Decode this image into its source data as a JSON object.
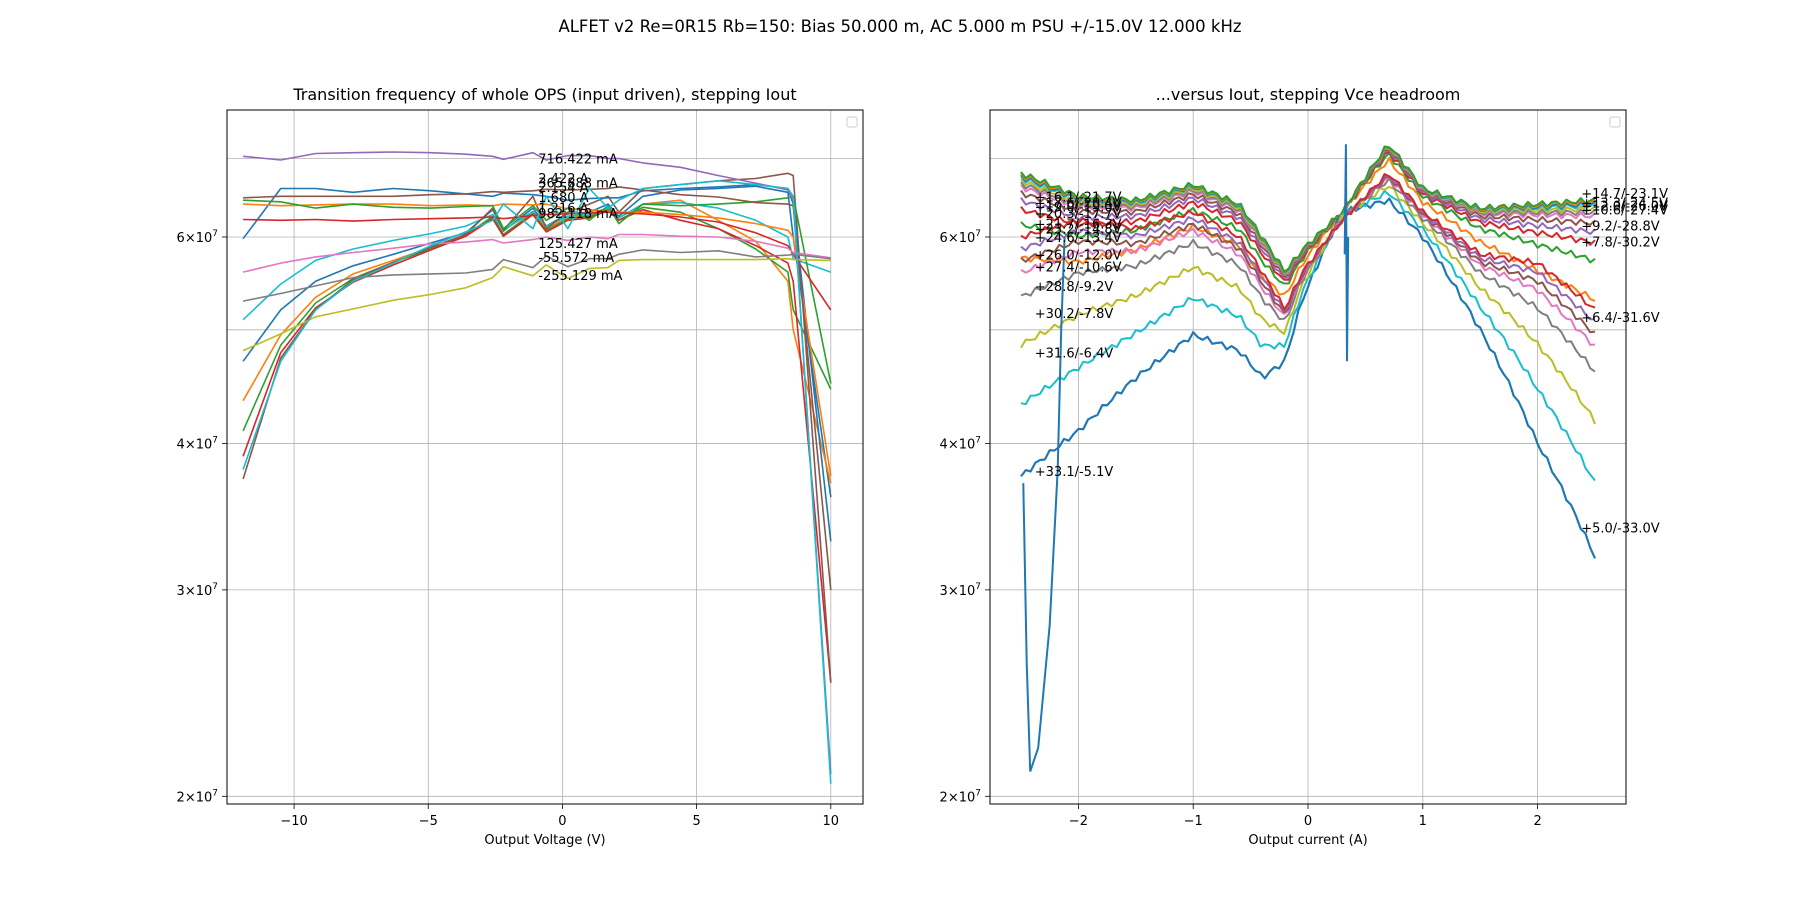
{
  "figure": {
    "suptitle": "ALFET v2 Re=0R15 Rb=150: Bias 50.000 m, AC 5.000 m PSU +/-15.0V 12.000 kHz"
  },
  "chart_data": [
    {
      "type": "line",
      "title": "Transition frequency of whole OPS (input driven), stepping Iout",
      "xlabel": "Output Voltage (V)",
      "ylabel": "",
      "xscale": "linear",
      "yscale": "log",
      "xlim": [
        -12.5,
        11.2
      ],
      "ylim": [
        19700000,
        77000000
      ],
      "xticks": [
        -10,
        -5,
        0,
        5,
        10
      ],
      "xtick_labels": [
        "−10",
        "−5",
        "0",
        "5",
        "10"
      ],
      "yticks": [
        20000000,
        30000000,
        40000000,
        60000000
      ],
      "ytick_labels": [
        {
          "mant": "2",
          "exp": "7"
        },
        {
          "mant": "3",
          "exp": "7"
        },
        {
          "mant": "4",
          "exp": "7"
        },
        {
          "mant": "6",
          "exp": "7"
        }
      ],
      "grid": true,
      "legend": "top-right, empty",
      "colors": [
        "#1f77b4",
        "#ff7f0e",
        "#2ca02c",
        "#d62728",
        "#9467bd",
        "#8c564b",
        "#e377c2",
        "#7f7f7f",
        "#bcbd22",
        "#17becf"
      ],
      "x": [
        -11.9,
        -10.5,
        -9.2,
        -7.8,
        -6.3,
        -4.9,
        -3.6,
        -2.6,
        -2.2,
        -1.1,
        -0.6,
        0.2,
        1.0,
        1.7,
        2.1,
        3.0,
        4.4,
        5.8,
        7.2,
        8.4,
        8.6,
        10.0
      ],
      "series": [
        {
          "name": "2.154 A",
          "label_y": 66200000,
          "values": [
            59800000,
            66000000,
            66000000,
            65500000,
            66000000,
            65700000,
            65300000,
            65000000,
            65400000,
            65200000,
            65000000,
            64500000,
            64700000,
            64800000,
            64800000,
            65700000,
            66000000,
            66200000,
            66500000,
            66000000,
            64000000,
            33000000
          ]
        },
        {
          "name": "1.680 A",
          "label_y": 64900000,
          "values": [
            64000000,
            63800000,
            63900000,
            64000000,
            64000000,
            63800000,
            63900000,
            63800000,
            64000000,
            63900000,
            64000000,
            63400000,
            63300000,
            63100000,
            63000000,
            63000000,
            62700000,
            62300000,
            61600000,
            60800000,
            60000000,
            37500000
          ]
        },
        {
          "name": "1.216 A",
          "label_y": 63600000,
          "values": [
            64500000,
            64300000,
            63500000,
            64000000,
            63600000,
            63500000,
            63700000,
            63800000,
            61000000,
            63800000,
            62000000,
            63500000,
            62000000,
            63800000,
            61600000,
            64000000,
            63800000,
            64000000,
            64300000,
            64800000,
            65000000,
            45000000
          ]
        },
        {
          "name": "982.118 mA",
          "label_y": 62900000,
          "values": [
            62100000,
            62000000,
            62100000,
            61900000,
            62100000,
            62200000,
            62300000,
            62400000,
            62200000,
            62600000,
            62700000,
            62800000,
            62900000,
            63000000,
            62900000,
            62800000,
            62400000,
            61800000,
            60500000,
            59000000,
            58000000,
            52000000
          ]
        },
        {
          "name": "716.422 mA",
          "label_y": 70000000,
          "values": [
            70300000,
            69800000,
            70700000,
            70800000,
            70900000,
            70800000,
            70600000,
            70300000,
            69900000,
            70800000,
            69800000,
            70400000,
            70400000,
            70000000,
            70000000,
            69400000,
            68800000,
            67700000,
            66700000,
            65800000,
            64500000,
            20900000
          ]
        },
        {
          "name": "365.888 mA",
          "label_y": 66800000,
          "values": [
            64800000,
            65000000,
            65000000,
            65000000,
            65000000,
            65200000,
            65300000,
            65600000,
            65500000,
            65700000,
            65900000,
            65800000,
            65900000,
            66000000,
            66200000,
            65800000,
            65200000,
            64900000,
            64200000,
            64000000,
            63800000,
            30000000
          ]
        },
        {
          "name": "125.427 mA",
          "label_y": 59300000,
          "values": [
            56000000,
            57000000,
            57700000,
            58200000,
            58700000,
            59200000,
            59400000,
            59700000,
            59300000,
            59700000,
            60000000,
            59600000,
            60000000,
            59800000,
            60300000,
            60300000,
            60100000,
            60000000,
            59500000,
            58700000,
            58200000,
            57600000
          ]
        },
        {
          "name": "-55.572 mA",
          "label_y": 57700000,
          "values": [
            52900000,
            53700000,
            54500000,
            55400000,
            55700000,
            55800000,
            55900000,
            56300000,
            57400000,
            56500000,
            57800000,
            56600000,
            57500000,
            57500000,
            58000000,
            58500000,
            58200000,
            58400000,
            57700000,
            57900000,
            58000000,
            57500000
          ]
        },
        {
          "name": "-255.129 mA",
          "label_y": 55700000,
          "values": [
            48000000,
            49600000,
            51300000,
            52100000,
            53000000,
            53600000,
            54300000,
            55400000,
            56600000,
            55600000,
            56800000,
            55300000,
            56400000,
            56500000,
            57300000,
            57400000,
            57400000,
            57400000,
            57400000,
            57500000,
            57400000,
            57300000
          ]
        },
        {
          "name": "2.422 A",
          "label_y": 67400000,
          "values": [
            38000000,
            47000000,
            52000000,
            55000000,
            57000000,
            59000000,
            60600000,
            62000000,
            64000000,
            61000000,
            65000000,
            61000000,
            66000000,
            63500000,
            64500000,
            66000000,
            66500000,
            67000000,
            66500000,
            66000000,
            65000000,
            20500000
          ]
        }
      ],
      "extra_series": [
        {
          "color": "#1f77b4",
          "values": [
            47000000,
            52000000,
            55000000,
            56700000,
            58000000,
            59300000,
            60500000,
            63300000,
            60700000,
            63500000,
            61300000,
            62800000,
            63000000,
            64000000,
            62500000,
            65000000,
            65800000,
            66000000,
            66300000,
            65500000,
            60000000,
            36000000
          ]
        },
        {
          "color": "#ff7f0e",
          "values": [
            43500000,
            49500000,
            53300000,
            55800000,
            57300000,
            58800000,
            60200000,
            62500000,
            60300000,
            63000000,
            61000000,
            62300000,
            62600000,
            63500000,
            62300000,
            64000000,
            64500000,
            62000000,
            59500000,
            55000000,
            50000000,
            37000000
          ]
        },
        {
          "color": "#2ca02c",
          "values": [
            41000000,
            48500000,
            52700000,
            55300000,
            57100000,
            58600000,
            60300000,
            62400000,
            60300000,
            62800000,
            60800000,
            62200000,
            62500000,
            63300000,
            62000000,
            63600000,
            63000000,
            61000000,
            58600000,
            56000000,
            52000000,
            44500000
          ]
        },
        {
          "color": "#d62728",
          "values": [
            39000000,
            47800000,
            52200000,
            54900000,
            56800000,
            58500000,
            60100000,
            62200000,
            60100000,
            62700000,
            60600000,
            62000000,
            62300000,
            63200000,
            62000000,
            63300000,
            62000000,
            61000000,
            59000000,
            57000000,
            55000000,
            25000000
          ]
        },
        {
          "color": "#17becf",
          "values": [
            51000000,
            54700000,
            57300000,
            58600000,
            59600000,
            60400000,
            61300000,
            62700000,
            60800000,
            63100000,
            61300000,
            62500000,
            62800000,
            63500000,
            62300000,
            64000000,
            64200000,
            63500000,
            62000000,
            60000000,
            57500000,
            56000000
          ]
        },
        {
          "color": "#8c564b",
          "values": [
            37300000,
            47300000,
            52000000,
            55200000,
            57100000,
            58800000,
            60300000,
            63500000,
            60800000,
            65000000,
            61000000,
            63000000,
            64000000,
            65000000,
            63000000,
            66000000,
            66500000,
            67000000,
            67300000,
            68000000,
            67700000,
            25000000
          ]
        }
      ]
    },
    {
      "type": "line",
      "title": "...versus Iout, stepping Vce headroom",
      "xlabel": "Output current (A)",
      "ylabel": "",
      "xscale": "linear",
      "yscale": "log",
      "xlim": [
        -2.77,
        2.77
      ],
      "ylim": [
        19700000,
        77000000
      ],
      "xticks": [
        -2,
        -1,
        0,
        1,
        2
      ],
      "xtick_labels": [
        "−2",
        "−1",
        "0",
        "1",
        "2"
      ],
      "yticks": [
        20000000,
        30000000,
        40000000,
        60000000
      ],
      "ytick_labels": [
        {
          "mant": "2",
          "exp": "7"
        },
        {
          "mant": "3",
          "exp": "7"
        },
        {
          "mant": "4",
          "exp": "7"
        },
        {
          "mant": "6",
          "exp": "7"
        }
      ],
      "grid": true,
      "legend": "top-right, empty",
      "x": [
        -2.5,
        -2.0,
        -1.5,
        -1.0,
        -0.6,
        -0.4,
        -0.2,
        -0.05,
        0.3,
        0.7,
        1.0,
        1.5,
        2.0,
        2.5
      ],
      "series": [
        {
          "name": "+33.1/-5.1V",
          "side": "left",
          "label_y": 37900000,
          "color": "#1f77b4",
          "offset": 0
        },
        {
          "name": "+31.6/-6.4V",
          "side": "left",
          "label_y": 47800000,
          "color": "#ff7f0e",
          "offset": 0.72
        },
        {
          "name": "+30.2/-7.8V",
          "side": "left",
          "label_y": 51700000,
          "color": "#2ca02c",
          "offset": 0.83
        },
        {
          "name": "+28.8/-9.2V",
          "side": "left",
          "label_y": 54500000,
          "color": "#d62728",
          "offset": 0.88
        },
        {
          "name": "+27.4/-10.6V",
          "side": "left",
          "label_y": 56600000,
          "color": "#9467bd",
          "offset": 0.91
        },
        {
          "name": "+26.0/-12.0V",
          "side": "left",
          "label_y": 58000000,
          "color": "#8c564b",
          "offset": 0.935
        },
        {
          "name": "+24.6/-13.4V",
          "side": "left",
          "label_y": 60000000,
          "color": "#e377c2",
          "offset": 0.955
        },
        {
          "name": "+23.2/-14.8V",
          "side": "left",
          "label_y": 61000000,
          "color": "#7f7f7f",
          "offset": 0.965
        },
        {
          "name": "+21.7/-16.3V",
          "side": "left",
          "label_y": 61600000,
          "color": "#bcbd22",
          "offset": 0.975
        },
        {
          "name": "+20.3/-17.7V",
          "side": "left",
          "label_y": 62900000,
          "color": "#17becf",
          "offset": 0.985
        },
        {
          "name": "+19.0/-19.0V",
          "side": "left",
          "label_y": 63700000,
          "color": "#1f77b4",
          "offset": 0.99
        },
        {
          "name": "+17.6/-20.4V",
          "side": "left",
          "label_y": 64200000,
          "color": "#ff7f0e",
          "offset": 0.995
        },
        {
          "name": "+16.1/-21.7V",
          "side": "left",
          "label_y": 65000000,
          "color": "#2ca02c",
          "offset": 1.0
        },
        {
          "name": "+5.0/-33.0V",
          "side": "right",
          "label_y": 33900000,
          "color": "#1f77b4",
          "offset": 0
        },
        {
          "name": "+6.4/-31.6V",
          "side": "right",
          "label_y": 51300000,
          "color": "#17becf",
          "offset": 0.3
        },
        {
          "name": "+7.8/-30.2V",
          "side": "right",
          "label_y": 59500000,
          "color": "#bcbd22",
          "offset": 0.55
        },
        {
          "name": "+9.2/-28.8V",
          "side": "right",
          "label_y": 61400000,
          "color": "#7f7f7f",
          "offset": 0.75
        },
        {
          "name": "+10.6/-27.4V",
          "side": "right",
          "label_y": 63300000,
          "color": "#e377c2",
          "offset": 0.85
        },
        {
          "name": "+12.0/-26.0V",
          "side": "right",
          "label_y": 63800000,
          "color": "#8c564b",
          "offset": 0.9
        },
        {
          "name": "+13.3/-24.5V",
          "side": "right",
          "label_y": 64200000,
          "color": "#9467bd",
          "offset": 0.95
        },
        {
          "name": "+14.7/-23.1V",
          "side": "right",
          "label_y": 65400000,
          "color": "#d62728",
          "offset": 1.0
        }
      ]
    }
  ]
}
